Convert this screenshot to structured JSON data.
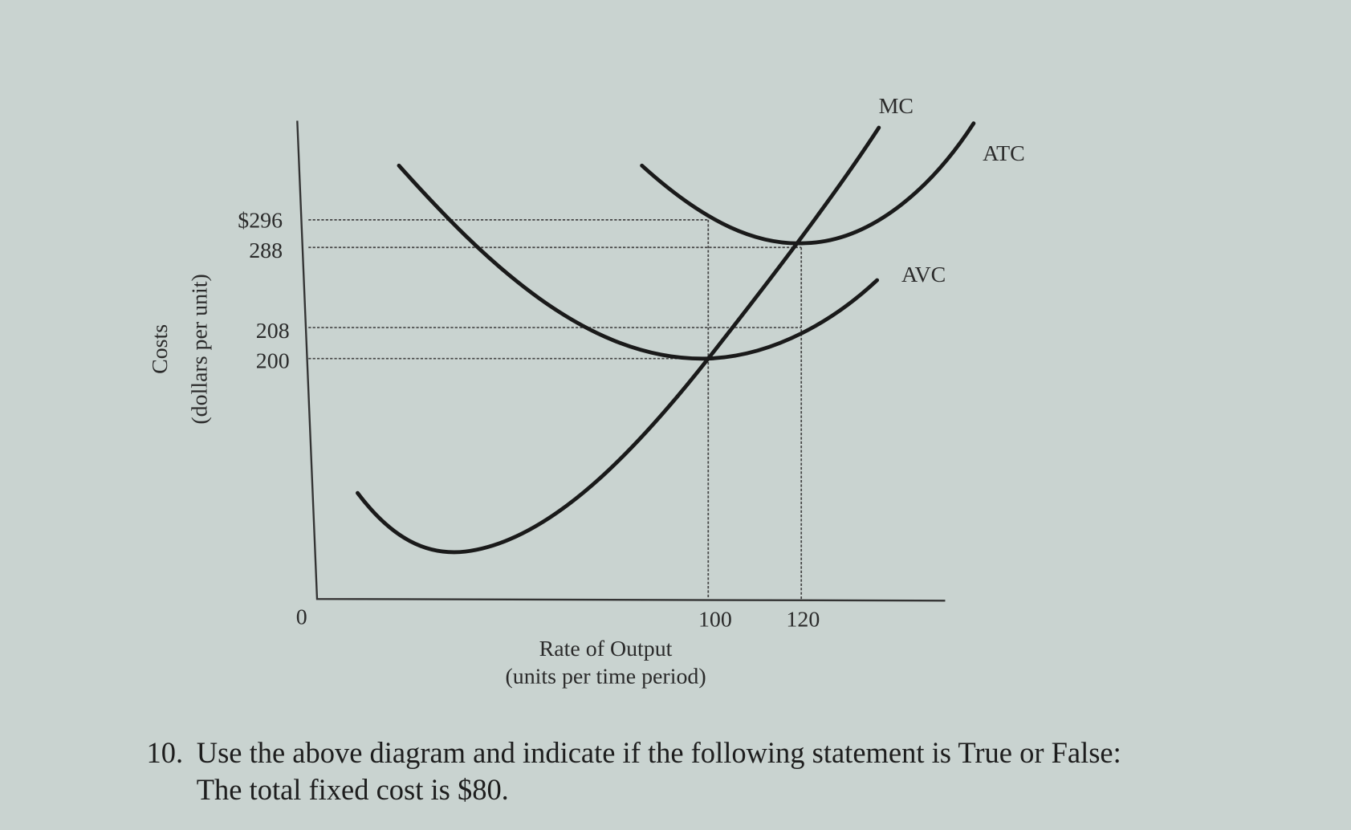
{
  "diagram": {
    "y_axis": {
      "label": "Costs",
      "sublabel": "(dollars per unit)",
      "ticks": [
        "$296",
        "288",
        "208",
        "200"
      ]
    },
    "x_axis": {
      "label": "Rate of Output",
      "sublabel": "(units per time period)",
      "ticks": [
        "0",
        "100",
        "120"
      ]
    },
    "curves": [
      "MC",
      "ATC",
      "AVC"
    ]
  },
  "question": {
    "number": "10.",
    "lines": [
      "Use the above diagram and indicate if the following statement is True or False:",
      "The total fixed cost is $80."
    ]
  }
}
